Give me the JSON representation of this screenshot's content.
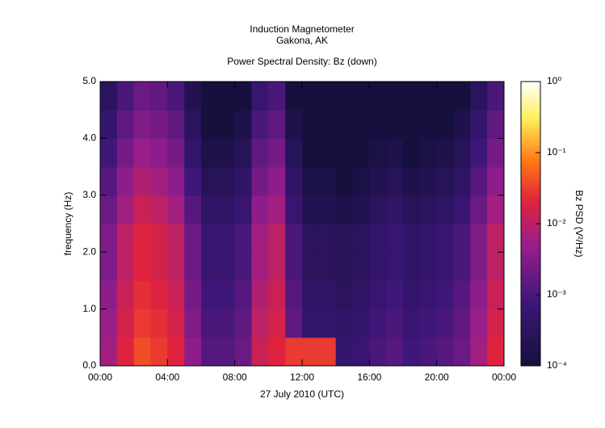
{
  "chart_data": {
    "type": "heatmap",
    "title": "Induction Magnetometer",
    "subtitle": "Gakona, AK",
    "plot_title": "Power Spectral Density: Bz (down)",
    "xlabel": "27 July 2010 (UTC)",
    "ylabel": "frequency (Hz)",
    "colorbar_label": "Bz PSD (V²/Hz)",
    "color_scale": "log",
    "x_bins": [
      0,
      1,
      2,
      3,
      4,
      5,
      6,
      7,
      8,
      9,
      10,
      11,
      12,
      13,
      14,
      15,
      16,
      17,
      18,
      19,
      20,
      21,
      22,
      23,
      24
    ],
    "y_bins": [
      0,
      0.5,
      1,
      1.5,
      2,
      2.5,
      3,
      3.5,
      4,
      4.5,
      5
    ],
    "z": [
      [
        0.006,
        0.02,
        0.04,
        0.03,
        0.02,
        0.004,
        0.0013,
        0.0013,
        0.002,
        0.013,
        0.02,
        0.03,
        0.03,
        0.03,
        0.0005,
        0.0006,
        0.001,
        0.0013,
        0.0008,
        0.001,
        0.0013,
        0.002,
        0.006,
        0.02
      ],
      [
        0.005,
        0.016,
        0.03,
        0.025,
        0.016,
        0.003,
        0.001,
        0.001,
        0.0016,
        0.01,
        0.016,
        0.0016,
        0.0005,
        0.0005,
        0.0004,
        0.0005,
        0.0008,
        0.001,
        0.0006,
        0.0008,
        0.001,
        0.0016,
        0.005,
        0.016
      ],
      [
        0.004,
        0.013,
        0.025,
        0.02,
        0.013,
        0.0025,
        0.0008,
        0.0008,
        0.0013,
        0.008,
        0.013,
        0.0013,
        0.0004,
        0.0004,
        0.0003,
        0.0004,
        0.0006,
        0.0008,
        0.0005,
        0.0006,
        0.0008,
        0.0013,
        0.004,
        0.013
      ],
      [
        0.003,
        0.01,
        0.02,
        0.016,
        0.01,
        0.002,
        0.0006,
        0.0006,
        0.001,
        0.006,
        0.01,
        0.001,
        0.0003,
        0.0003,
        0.00025,
        0.0003,
        0.0005,
        0.0006,
        0.0004,
        0.0005,
        0.0006,
        0.001,
        0.003,
        0.01
      ],
      [
        0.003,
        0.01,
        0.02,
        0.016,
        0.01,
        0.002,
        0.0006,
        0.0006,
        0.001,
        0.006,
        0.01,
        0.001,
        0.0003,
        0.0003,
        0.00025,
        0.0003,
        0.0005,
        0.0006,
        0.0004,
        0.0005,
        0.0006,
        0.001,
        0.003,
        0.01
      ],
      [
        0.002,
        0.006,
        0.013,
        0.01,
        0.006,
        0.0013,
        0.0004,
        0.0004,
        0.0006,
        0.004,
        0.006,
        0.0006,
        0.0002,
        0.0002,
        0.00016,
        0.0002,
        0.0003,
        0.0004,
        0.00025,
        0.0003,
        0.0004,
        0.0006,
        0.002,
        0.006
      ],
      [
        0.0013,
        0.004,
        0.008,
        0.006,
        0.004,
        0.0008,
        0.00025,
        0.00025,
        0.0004,
        0.0025,
        0.004,
        0.0004,
        0.00013,
        0.00013,
        0.0001,
        0.00013,
        0.0002,
        0.00025,
        0.00016,
        0.0002,
        0.00025,
        0.0004,
        0.0013,
        0.004
      ],
      [
        0.0008,
        0.0025,
        0.005,
        0.004,
        0.0025,
        0.0005,
        0.00016,
        0.00016,
        0.00025,
        0.0016,
        0.0025,
        0.00025,
        0.0001,
        0.0001,
        0.0001,
        0.0001,
        0.00013,
        0.00016,
        0.0001,
        0.00013,
        0.00016,
        0.00025,
        0.0008,
        0.0025
      ],
      [
        0.0005,
        0.0016,
        0.003,
        0.0025,
        0.0016,
        0.0003,
        0.0001,
        0.0001,
        0.00016,
        0.001,
        0.0016,
        0.00016,
        0.0001,
        0.0001,
        0.0001,
        0.0001,
        0.0001,
        0.0001,
        0.0001,
        0.0001,
        0.0001,
        0.00016,
        0.0005,
        0.0016
      ],
      [
        0.0003,
        0.001,
        0.002,
        0.0016,
        0.001,
        0.0002,
        0.0001,
        0.0001,
        0.0001,
        0.0006,
        0.001,
        0.0001,
        0.0001,
        0.0001,
        0.0001,
        0.0001,
        0.0001,
        0.0001,
        0.0001,
        0.0001,
        0.0001,
        0.0001,
        0.0003,
        0.001
      ]
    ],
    "xlim": [
      0,
      24
    ],
    "xticks": [
      {
        "value": 0,
        "label": "00:00"
      },
      {
        "value": 4,
        "label": "04:00"
      },
      {
        "value": 8,
        "label": "08:00"
      },
      {
        "value": 12,
        "label": "12:00"
      },
      {
        "value": 16,
        "label": "16:00"
      },
      {
        "value": 20,
        "label": "20:00"
      },
      {
        "value": 24,
        "label": "00:00"
      }
    ],
    "ylim": [
      0,
      5
    ],
    "yticks": [
      {
        "value": 0,
        "label": "0.0"
      },
      {
        "value": 1,
        "label": "1.0"
      },
      {
        "value": 2,
        "label": "2.0"
      },
      {
        "value": 3,
        "label": "3.0"
      },
      {
        "value": 4,
        "label": "4.0"
      },
      {
        "value": 5,
        "label": "5.0"
      }
    ],
    "clim": [
      0.0001,
      1
    ],
    "cticks": [
      {
        "value": 0.0001,
        "label": "10⁻⁴"
      },
      {
        "value": 0.001,
        "label": "10⁻³"
      },
      {
        "value": 0.01,
        "label": "10⁻²"
      },
      {
        "value": 0.1,
        "label": "10⁻¹"
      },
      {
        "value": 1,
        "label": "10⁰"
      }
    ]
  }
}
